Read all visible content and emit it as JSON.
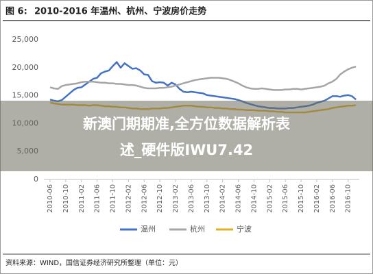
{
  "figure_label": "图 6:",
  "chart_data": {
    "type": "line",
    "title": "2010-2016 年温州、杭州、宁波房价走势",
    "categories": [
      "2010-06",
      null,
      null,
      null,
      "2010-10",
      null,
      null,
      null,
      "2011-02",
      null,
      null,
      null,
      "2011-06",
      null,
      null,
      null,
      "2011-10",
      null,
      null,
      null,
      "2012-02",
      null,
      null,
      null,
      "2012-06",
      null,
      null,
      null,
      "2012-10",
      null,
      null,
      null,
      "2013-02",
      null,
      null,
      null,
      "2013-06",
      null,
      null,
      null,
      "2013-10",
      null,
      null,
      null,
      "2014-02",
      null,
      null,
      null,
      "2014-06",
      null,
      null,
      null,
      "2014-10",
      null,
      null,
      null,
      "2015-02",
      null,
      null,
      null,
      "2015-06",
      null,
      null,
      null,
      "2015-10",
      null,
      null,
      null,
      "2016-02",
      null,
      null,
      null,
      "2016-06",
      null,
      null,
      null,
      "2016-10",
      null,
      null
    ],
    "series": [
      {
        "name": "温州",
        "color": "#4472c4",
        "values": [
          14300,
          14100,
          14000,
          14200,
          14800,
          15400,
          16000,
          16400,
          16500,
          17000,
          17500,
          18000,
          18200,
          19000,
          19300,
          19500,
          20300,
          21000,
          20000,
          20800,
          20300,
          19800,
          19900,
          19500,
          18800,
          18700,
          17600,
          17300,
          17400,
          17300,
          16800,
          17300,
          17000,
          16200,
          15700,
          15600,
          15700,
          15600,
          15500,
          15400,
          15100,
          15000,
          14900,
          14800,
          14700,
          14600,
          14500,
          14400,
          14200,
          14000,
          13700,
          13500,
          13300,
          13100,
          13000,
          12900,
          12800,
          12800,
          12700,
          12700,
          12700,
          12800,
          12800,
          12900,
          13000,
          13100,
          13200,
          13400,
          13700,
          13900,
          14100,
          14500,
          14900,
          14900,
          14800,
          15000,
          15100,
          14900,
          14300
        ]
      },
      {
        "name": "杭州",
        "color": "#a5a5a5",
        "values": [
          16500,
          16300,
          16200,
          16700,
          16900,
          17000,
          17100,
          17200,
          17400,
          17500,
          17500,
          17500,
          17400,
          17300,
          17300,
          17200,
          17200,
          17100,
          17100,
          17000,
          16900,
          16900,
          16800,
          16600,
          16400,
          16300,
          16300,
          16300,
          16400,
          16400,
          16500,
          16600,
          16800,
          17000,
          17200,
          17400,
          17600,
          17800,
          17900,
          18000,
          18100,
          18200,
          18200,
          18200,
          18100,
          18000,
          17800,
          17500,
          17200,
          16800,
          16500,
          16300,
          16200,
          16200,
          16300,
          16200,
          16100,
          16000,
          16000,
          16000,
          16100,
          16100,
          16200,
          16200,
          16100,
          16200,
          16300,
          16400,
          16500,
          16600,
          16800,
          17200,
          17500,
          18000,
          18800,
          19300,
          19700,
          20000,
          20200
        ]
      },
      {
        "name": "宁波",
        "color": "#e0b020",
        "values": [
          13800,
          13600,
          13500,
          13400,
          13400,
          13400,
          13400,
          13300,
          13300,
          13300,
          13200,
          13300,
          13300,
          13200,
          13100,
          13100,
          13000,
          13000,
          12900,
          12900,
          12800,
          12700,
          12700,
          12600,
          12600,
          12600,
          12700,
          12700,
          12700,
          12800,
          12800,
          12900,
          13000,
          13100,
          13200,
          13200,
          13200,
          13100,
          13000,
          13000,
          12900,
          12900,
          12800,
          12800,
          12700,
          12700,
          12600,
          12600,
          12500,
          12500,
          12400,
          12400,
          12400,
          12300,
          12300,
          12300,
          12200,
          12200,
          12100,
          12100,
          12000,
          12000,
          12000,
          12000,
          12000,
          12000,
          12100,
          12200,
          12300,
          12400,
          12500,
          12600,
          12800,
          12900,
          13000,
          13100,
          13200,
          13200,
          13300
        ]
      }
    ],
    "ylim": [
      0,
      25000
    ],
    "yticks": [
      0,
      {
        "value": 5000,
        "label": "5,000"
      },
      {
        "value": 10000,
        "label": "10,000"
      },
      {
        "value": 15000,
        "label": "15,000"
      },
      {
        "value": 20000,
        "label": "20,000"
      },
      {
        "value": 25000,
        "label": "25,000"
      }
    ],
    "grid": false
  },
  "source": "资料来源：WIND，国信证券经济研究所整理（单位：元）",
  "overlay": {
    "line1": "新澳门期期准,全方位数据解析表",
    "line2": "述_硬件版IWU7.42"
  }
}
